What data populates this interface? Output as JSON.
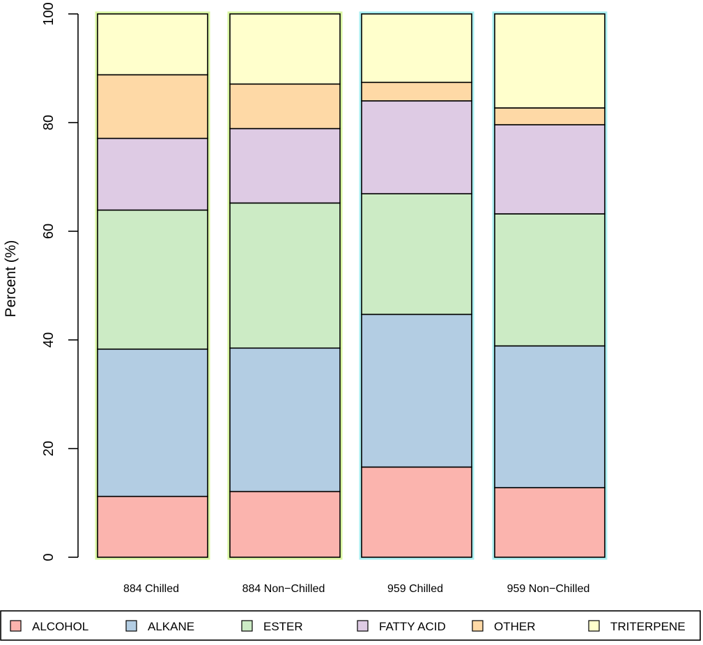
{
  "chart_data": {
    "type": "bar",
    "stacked": true,
    "categories": [
      "884 Chilled",
      "884 Non−Chilled",
      "959 Chilled",
      "959 Non−Chilled"
    ],
    "ylabel": "Percent (%)",
    "xlabel": "",
    "ylim": [
      0,
      100
    ],
    "yticks": [
      0,
      20,
      40,
      60,
      80,
      100
    ],
    "grid": false,
    "legend_position": "bottom",
    "bar_outline_colors": [
      "#d8f5a0",
      "#d8f5a0",
      "#a8eef0",
      "#a8eef0"
    ],
    "series": [
      {
        "name": "ALCOHOL",
        "color": "#fbb4ae",
        "values": [
          11.2,
          12.1,
          16.6,
          12.8
        ]
      },
      {
        "name": "ALKANE",
        "color": "#b3cde3",
        "values": [
          27.1,
          26.4,
          28.1,
          26.1
        ]
      },
      {
        "name": "ESTER",
        "color": "#ccebc5",
        "values": [
          25.6,
          26.7,
          22.2,
          24.3
        ]
      },
      {
        "name": "FATTY ACID",
        "color": "#decbe4",
        "values": [
          13.2,
          13.7,
          17.1,
          16.4
        ]
      },
      {
        "name": "OTHER",
        "color": "#fed9a6",
        "values": [
          11.7,
          8.2,
          3.4,
          3.1
        ]
      },
      {
        "name": "TRITERPENE",
        "color": "#ffffcc",
        "values": [
          11.2,
          12.9,
          12.6,
          17.3
        ]
      }
    ]
  }
}
